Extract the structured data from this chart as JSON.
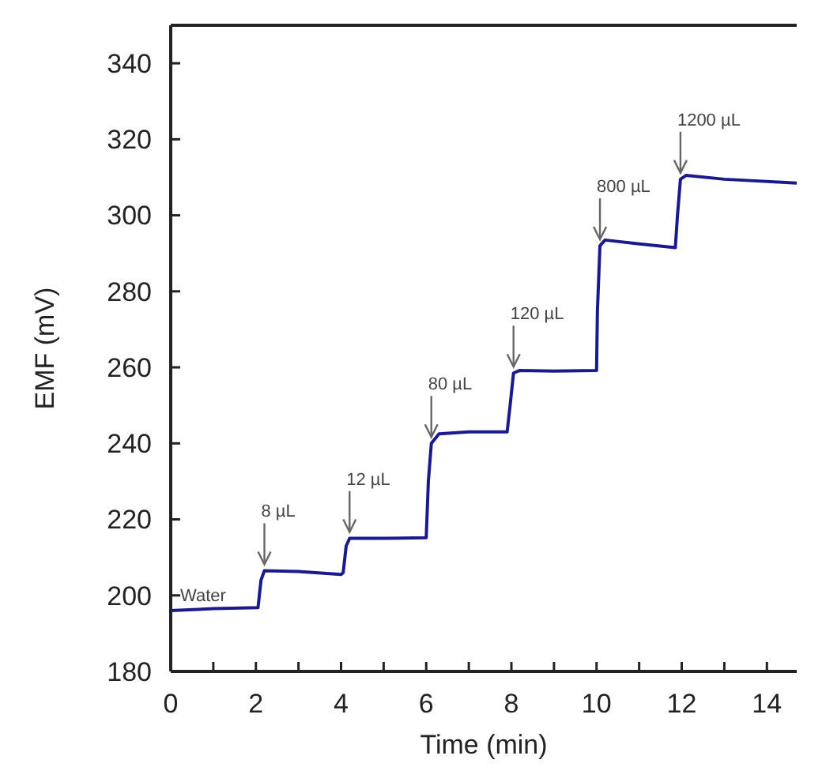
{
  "chart_data": {
    "type": "line",
    "xlabel": "Time (min)",
    "ylabel": "EMF (mV)",
    "xlim": [
      0,
      14.7
    ],
    "ylim": [
      180,
      350
    ],
    "xticks": [
      0,
      {
        "value": 1,
        "label": null
      },
      2,
      {
        "value": 3,
        "label": null
      },
      4,
      {
        "value": 5,
        "label": null
      },
      6,
      {
        "value": 7,
        "label": null
      },
      8,
      {
        "value": 9,
        "label": null
      },
      10,
      {
        "value": 11,
        "label": null
      },
      12,
      {
        "value": 13,
        "label": null
      },
      14
    ],
    "yticks": [
      180,
      200,
      220,
      240,
      260,
      280,
      300,
      320,
      340
    ],
    "series": [
      {
        "color": "#1a1a8c",
        "x": [
          0,
          1,
          2.05,
          2.12,
          2.2,
          3,
          4,
          4.05,
          4.12,
          4.2,
          5,
          6,
          6.05,
          6.12,
          6.3,
          7,
          7.9,
          7.97,
          8.05,
          8.2,
          9,
          10,
          10.02,
          10.08,
          10.2,
          11,
          11.85,
          11.9,
          11.97,
          12.1,
          13,
          14.7
        ],
        "values": [
          196,
          196.5,
          196.8,
          204,
          206.5,
          206.3,
          205.5,
          206,
          213,
          215,
          215,
          215.2,
          230,
          240,
          242.5,
          243,
          243,
          250,
          258.5,
          259.2,
          259,
          259.2,
          275,
          292,
          293.5,
          292.5,
          291.5,
          300,
          309.5,
          310.5,
          309.5,
          308.5
        ]
      }
    ],
    "annotations": [
      {
        "text": "Water",
        "x": 0,
        "y": 196
      },
      {
        "text": "8 µL",
        "x": 2.2,
        "y": 206.5
      },
      {
        "text": "12 µL",
        "x": 4.2,
        "y": 215
      },
      {
        "text": "80 µL",
        "x": 6.12,
        "y": 240
      },
      {
        "text": "120 µL",
        "x": 8.05,
        "y": 258.5
      },
      {
        "text": "800 µL",
        "x": 10.08,
        "y": 292
      },
      {
        "text": "1200 µL",
        "x": 11.97,
        "y": 309.5
      }
    ],
    "grid": false,
    "marker": "none",
    "line_style": "solid"
  }
}
